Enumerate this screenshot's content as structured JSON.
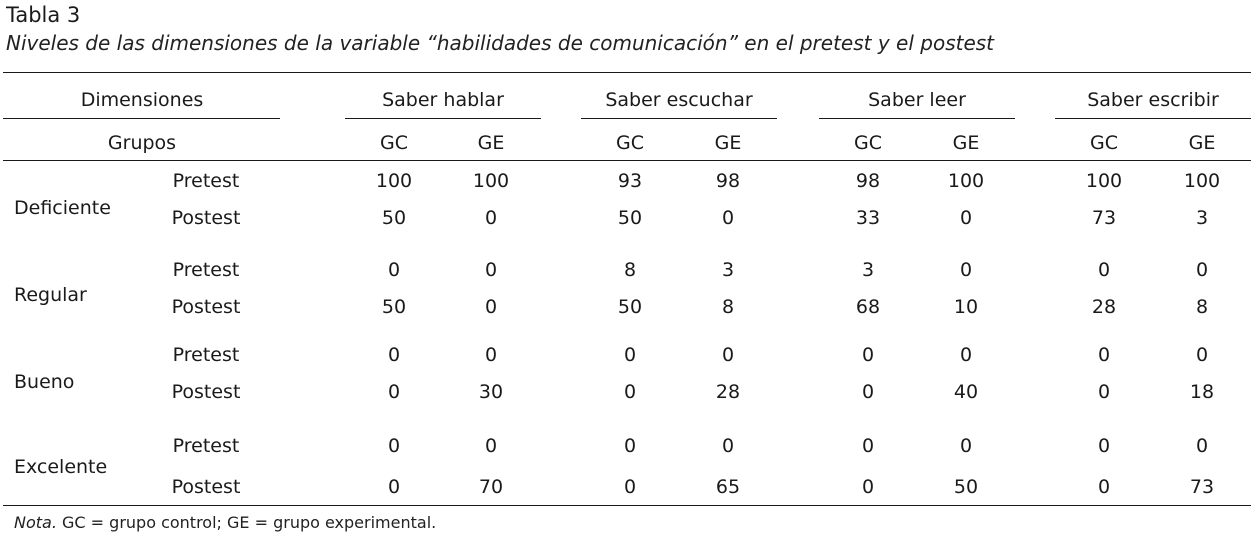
{
  "caption": {
    "label": "Tabla 3",
    "title": "Niveles de las dimensiones de la variable “habilidades de comunicación” en el pretest y el postest"
  },
  "table": {
    "dimensions_header": "Dimensiones",
    "groups_header": "Grupos",
    "dimensions": [
      "Saber hablar",
      "Saber escuchar",
      "Saber leer",
      "Saber escribir"
    ],
    "group_labels": [
      "GC",
      "GE",
      "GC",
      "GE",
      "GC",
      "GE",
      "GC",
      "GE"
    ],
    "levels": [
      {
        "name": "Deficiente",
        "rows": [
          {
            "phase": "Pretest",
            "values": [
              "100",
              "100",
              "93",
              "98",
              "98",
              "100",
              "100",
              "100"
            ]
          },
          {
            "phase": "Postest",
            "values": [
              "50",
              "0",
              "50",
              "0",
              "33",
              "0",
              "73",
              "3"
            ]
          }
        ]
      },
      {
        "name": "Regular",
        "rows": [
          {
            "phase": "Pretest",
            "values": [
              "0",
              "0",
              "8",
              "3",
              "3",
              "0",
              "0",
              "0"
            ]
          },
          {
            "phase": "Postest",
            "values": [
              "50",
              "0",
              "50",
              "8",
              "68",
              "10",
              "28",
              "8"
            ]
          }
        ]
      },
      {
        "name": "Bueno",
        "rows": [
          {
            "phase": "Pretest",
            "values": [
              "0",
              "0",
              "0",
              "0",
              "0",
              "0",
              "0",
              "0"
            ]
          },
          {
            "phase": "Postest",
            "values": [
              "0",
              "30",
              "0",
              "28",
              "0",
              "40",
              "0",
              "18"
            ]
          }
        ]
      },
      {
        "name": "Excelente",
        "rows": [
          {
            "phase": "Pretest",
            "values": [
              "0",
              "0",
              "0",
              "0",
              "0",
              "0",
              "0",
              "0"
            ]
          },
          {
            "phase": "Postest",
            "values": [
              "0",
              "70",
              "0",
              "65",
              "0",
              "50",
              "0",
              "73"
            ]
          }
        ]
      }
    ]
  },
  "note": {
    "label": "Nota.",
    "text": " GC = grupo control; GE = grupo experimental."
  }
}
